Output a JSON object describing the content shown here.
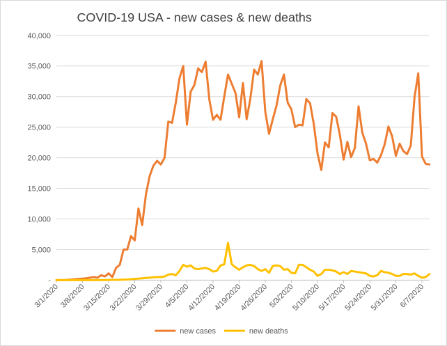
{
  "chart_data": {
    "type": "line",
    "title": "COVID-19 USA - new cases & new deaths",
    "xlabel": "",
    "ylabel": "",
    "ylim": [
      0,
      40000
    ],
    "yticks": [
      0,
      5000,
      10000,
      15000,
      20000,
      25000,
      30000,
      35000,
      40000
    ],
    "ytick_labels": [
      "-",
      "5,000",
      "10,000",
      "15,000",
      "20,000",
      "25,000",
      "30,000",
      "35,000",
      "40,000"
    ],
    "xtick_labels": [
      "3/1/2020",
      "3/8/2020",
      "3/15/2020",
      "3/22/2020",
      "3/29/2020",
      "4/5/2020",
      "4/12/2020",
      "4/19/2020",
      "4/26/2020",
      "5/3/2020",
      "5/10/2020",
      "5/17/2020",
      "5/24/2020",
      "5/31/2020",
      "6/7/2020"
    ],
    "x_start": "3/1/2020",
    "x_end": "6/9/2020",
    "grid": true,
    "legend": "bottom",
    "series": [
      {
        "name": "new cases",
        "color": "#ED7D31",
        "values": [
          0,
          0,
          0,
          50,
          100,
          150,
          200,
          250,
          300,
          400,
          500,
          400,
          800,
          600,
          1100,
          500,
          2000,
          2500,
          5000,
          5000,
          7200,
          6500,
          11700,
          9000,
          14000,
          17000,
          18700,
          19500,
          18900,
          20000,
          25900,
          25700,
          29000,
          33000,
          35000,
          25400,
          30800,
          31900,
          34600,
          34000,
          35700,
          29500,
          26200,
          27000,
          26200,
          30000,
          33600,
          32100,
          30600,
          26600,
          32200,
          26300,
          29700,
          34400,
          33600,
          35800,
          27500,
          23900,
          26300,
          28500,
          31800,
          33600,
          29000,
          27900,
          25000,
          25400,
          25300,
          29600,
          28900,
          25500,
          20700,
          18000,
          22500,
          21700,
          27300,
          26700,
          23700,
          19700,
          22600,
          20100,
          21600,
          28400,
          24100,
          22300,
          19600,
          19800,
          19200,
          20400,
          22200,
          25100,
          23500,
          20300,
          22300,
          21100,
          20600,
          22000,
          29900,
          33800,
          20200,
          19000,
          18900
        ]
      },
      {
        "name": "new deaths",
        "color": "#FFC000",
        "values": [
          0,
          0,
          0,
          0,
          0,
          0,
          0,
          0,
          0,
          0,
          0,
          0,
          10,
          20,
          30,
          40,
          50,
          60,
          80,
          100,
          150,
          200,
          250,
          300,
          350,
          400,
          450,
          500,
          500,
          600,
          900,
          1000,
          800,
          1500,
          2500,
          2200,
          2400,
          1900,
          1800,
          1900,
          2000,
          1800,
          1400,
          1500,
          2400,
          2600,
          6100,
          2600,
          2100,
          1700,
          2100,
          2400,
          2500,
          2300,
          1800,
          1500,
          1800,
          1200,
          2300,
          2400,
          2300,
          1700,
          1800,
          1200,
          1100,
          2500,
          2500,
          2100,
          1700,
          1400,
          700,
          1000,
          1700,
          1700,
          1600,
          1400,
          1000,
          1300,
          1000,
          1500,
          1400,
          1300,
          1200,
          1100,
          700,
          600,
          800,
          1500,
          1300,
          1200,
          1000,
          700,
          700,
          1000,
          1000,
          900,
          1100,
          700,
          400,
          500,
          1000
        ]
      }
    ]
  }
}
